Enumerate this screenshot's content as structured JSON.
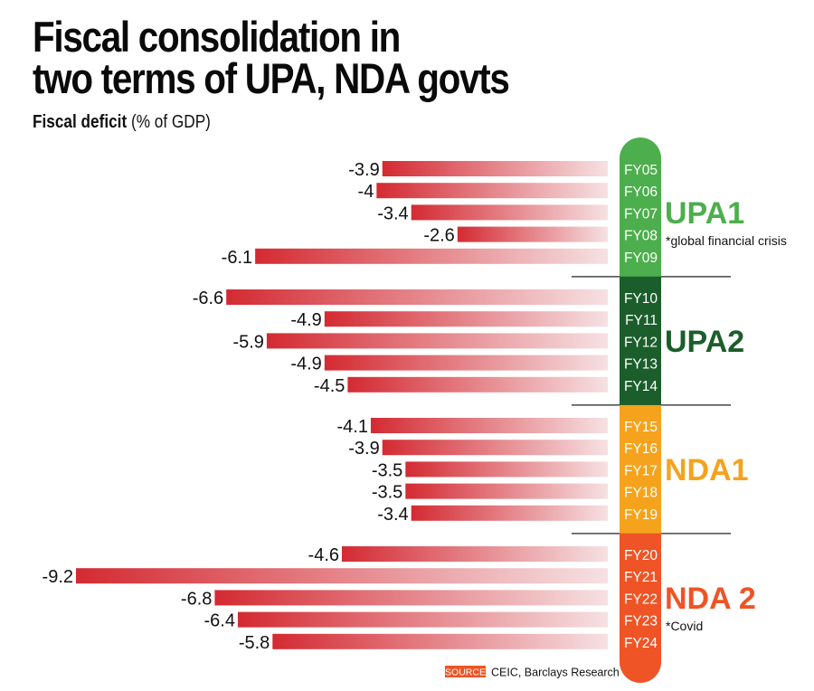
{
  "header": {
    "title_line1": "Fiscal consolidation in",
    "title_line2": "two terms of UPA, NDA govts",
    "subtitle_bold": "Fiscal deficit",
    "subtitle_rest": " (% of GDP)"
  },
  "source": {
    "badge": "SOURCE",
    "text": "CEIC, Barclays Research"
  },
  "colors": {
    "bar_dark": "#d42a32",
    "bar_light": "#f6e1e3",
    "UPA1": "#4cae4c",
    "UPA2": "#1b5e2b",
    "NDA1": "#f5a31d",
    "NDA2": "#ee5425",
    "source_badge": "#ee5425",
    "divider": "#222222"
  },
  "chart_data": {
    "type": "bar",
    "orientation": "horizontal",
    "title": "Fiscal consolidation in two terms of UPA, NDA govts",
    "subtitle": "Fiscal deficit (% of GDP)",
    "xlabel": "",
    "ylabel": "",
    "xlim": [
      -9.2,
      0
    ],
    "grid": false,
    "categories": [
      "FY05",
      "FY06",
      "FY07",
      "FY08",
      "FY09",
      "FY10",
      "FY11",
      "FY12",
      "FY13",
      "FY14",
      "FY15",
      "FY16",
      "FY17",
      "FY18",
      "FY19",
      "FY20",
      "FY21",
      "FY22",
      "FY23",
      "FY24"
    ],
    "values": [
      -3.9,
      -4,
      -3.4,
      -2.6,
      -6.1,
      -6.6,
      -4.9,
      -5.9,
      -4.9,
      -4.5,
      -4.1,
      -3.9,
      -3.5,
      -3.5,
      -3.4,
      -4.6,
      -9.2,
      -6.8,
      -6.4,
      -5.8
    ],
    "value_labels": [
      "-3.9",
      "-4",
      "-3.4",
      "-2.6",
      "-6.1",
      "-6.6",
      "-4.9",
      "-5.9",
      "-4.9",
      "-4.5",
      "-4.1",
      "-3.9",
      "-3.5",
      "-3.5",
      "-3.4",
      "-4.6",
      "-9.2",
      "-6.8",
      "-6.4",
      "-5.8"
    ],
    "groups": [
      {
        "name": "UPA1",
        "label": "UPA1",
        "note": "*global financial crisis",
        "color_key": "UPA1",
        "start": 0,
        "end": 4
      },
      {
        "name": "UPA2",
        "label": "UPA2",
        "note": "",
        "color_key": "UPA2",
        "start": 5,
        "end": 9
      },
      {
        "name": "NDA1",
        "label": "NDA1",
        "note": "",
        "color_key": "NDA1",
        "start": 10,
        "end": 14
      },
      {
        "name": "NDA2",
        "label": "NDA 2",
        "note": "*Covid",
        "color_key": "NDA2",
        "start": 15,
        "end": 19
      }
    ]
  }
}
